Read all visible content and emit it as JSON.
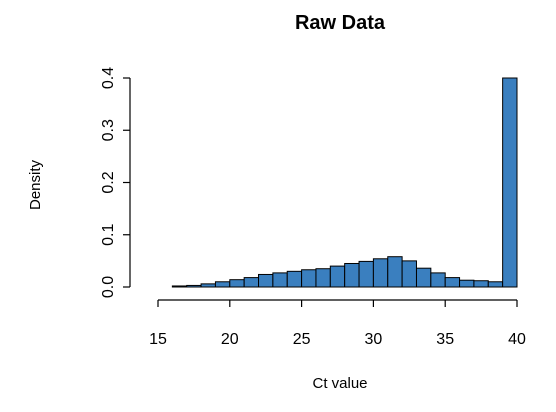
{
  "chart_data": {
    "type": "bar",
    "title": "Raw Data",
    "xlabel": "Ct value",
    "ylabel": "Density",
    "bar_color": "#3a7fbf",
    "xlim": [
      15,
      40
    ],
    "ylim": [
      0,
      0.4
    ],
    "x_ticks": [
      "15",
      "20",
      "25",
      "30",
      "35",
      "40"
    ],
    "y_ticks": [
      "0.0",
      "0.1",
      "0.2",
      "0.3",
      "0.4"
    ],
    "bin_width": 1,
    "bins": [
      {
        "x0": 16,
        "x1": 17,
        "value": 0.002
      },
      {
        "x0": 17,
        "x1": 18,
        "value": 0.003
      },
      {
        "x0": 18,
        "x1": 19,
        "value": 0.006
      },
      {
        "x0": 19,
        "x1": 20,
        "value": 0.01
      },
      {
        "x0": 20,
        "x1": 21,
        "value": 0.014
      },
      {
        "x0": 21,
        "x1": 22,
        "value": 0.018
      },
      {
        "x0": 22,
        "x1": 23,
        "value": 0.024
      },
      {
        "x0": 23,
        "x1": 24,
        "value": 0.027
      },
      {
        "x0": 24,
        "x1": 25,
        "value": 0.03
      },
      {
        "x0": 25,
        "x1": 26,
        "value": 0.033
      },
      {
        "x0": 26,
        "x1": 27,
        "value": 0.035
      },
      {
        "x0": 27,
        "x1": 28,
        "value": 0.04
      },
      {
        "x0": 28,
        "x1": 29,
        "value": 0.045
      },
      {
        "x0": 29,
        "x1": 30,
        "value": 0.049
      },
      {
        "x0": 30,
        "x1": 31,
        "value": 0.054
      },
      {
        "x0": 31,
        "x1": 32,
        "value": 0.058
      },
      {
        "x0": 32,
        "x1": 33,
        "value": 0.05
      },
      {
        "x0": 33,
        "x1": 34,
        "value": 0.036
      },
      {
        "x0": 34,
        "x1": 35,
        "value": 0.027
      },
      {
        "x0": 35,
        "x1": 36,
        "value": 0.018
      },
      {
        "x0": 36,
        "x1": 37,
        "value": 0.013
      },
      {
        "x0": 37,
        "x1": 38,
        "value": 0.012
      },
      {
        "x0": 38,
        "x1": 39,
        "value": 0.01
      },
      {
        "x0": 39,
        "x1": 40,
        "value": 0.4
      }
    ]
  }
}
